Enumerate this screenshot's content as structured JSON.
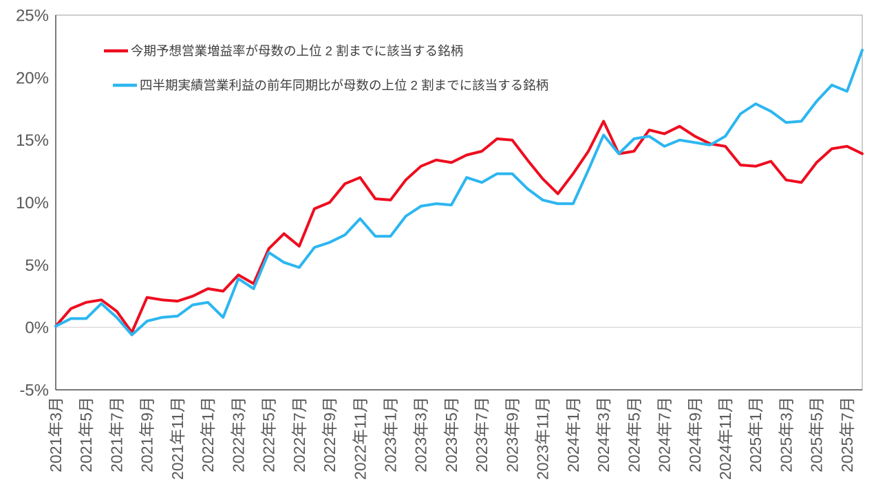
{
  "chart_data": {
    "type": "line",
    "title": "",
    "n_points": 54,
    "x_start_month": "2021年3月",
    "x_label_every_n_points": 2,
    "x_label_rotation": -90,
    "x_tick_labels": [
      "2021年3月",
      "2021年5月",
      "2021年7月",
      "2021年9月",
      "2021年11月",
      "2022年1月",
      "2022年3月",
      "2022年5月",
      "2022年7月",
      "2022年9月",
      "2022年11月",
      "2023年1月",
      "2023年3月",
      "2023年5月",
      "2023年7月",
      "2023年9月",
      "2023年11月",
      "2024年1月",
      "2024年3月",
      "2024年5月",
      "2024年7月",
      "2024年9月",
      "2024年11月",
      "2025年1月",
      "2025年3月",
      "2025年5月",
      "2025年7月"
    ],
    "y_axis": {
      "min": -5,
      "max": 25,
      "tick_values": [
        25,
        20,
        15,
        10,
        5,
        0,
        -5
      ],
      "tick_labels": [
        "25%",
        "20%",
        "15%",
        "10%",
        "5%",
        "0%",
        "-5%"
      ]
    },
    "grid": "horizontal gridline at 0% only",
    "legend_position": "top-left",
    "series": [
      {
        "name": "今期予想営業増益率が母数の上位 2 割までに該当する銘柄",
        "color": "#ee0d1f",
        "values": [
          0.1,
          1.5,
          2.0,
          2.2,
          1.3,
          -0.4,
          2.4,
          2.2,
          2.1,
          2.5,
          3.1,
          2.9,
          4.2,
          3.5,
          6.3,
          7.5,
          6.5,
          9.5,
          10.0,
          11.5,
          12.0,
          10.3,
          10.2,
          11.8,
          12.9,
          13.4,
          13.2,
          13.8,
          14.1,
          15.1,
          15.0,
          13.4,
          11.9,
          10.7,
          12.3,
          14.1,
          16.5,
          13.9,
          14.1,
          15.8,
          15.5,
          16.1,
          15.3,
          14.7,
          14.5,
          13.0,
          12.9,
          13.3,
          11.8,
          11.6,
          13.2,
          14.3,
          14.5,
          13.9
        ]
      },
      {
        "name": "四半期実績営業利益の前年同期比が母数の上位 2 割までに該当する銘柄",
        "color": "#2cb6f0",
        "values": [
          0.1,
          0.7,
          0.7,
          1.9,
          0.8,
          -0.6,
          0.5,
          0.8,
          0.9,
          1.8,
          2.0,
          0.8,
          3.9,
          3.1,
          6.0,
          5.2,
          4.8,
          6.4,
          6.8,
          7.4,
          8.7,
          7.3,
          7.3,
          8.9,
          9.7,
          9.9,
          9.8,
          12.0,
          11.6,
          12.3,
          12.3,
          11.1,
          10.2,
          9.9,
          9.9,
          12.6,
          15.4,
          13.9,
          15.1,
          15.3,
          14.5,
          15.0,
          14.8,
          14.6,
          15.3,
          17.1,
          17.9,
          17.3,
          16.4,
          16.5,
          18.1,
          19.4,
          18.9,
          22.2
        ]
      }
    ],
    "colors": {
      "background": "#ffffff",
      "axis_text": "#595959",
      "legend_text": "#3f3f3f",
      "axis_line": "#262626",
      "plot_border": "#9b9b9b",
      "zero_line": "#d9d9d9"
    }
  }
}
